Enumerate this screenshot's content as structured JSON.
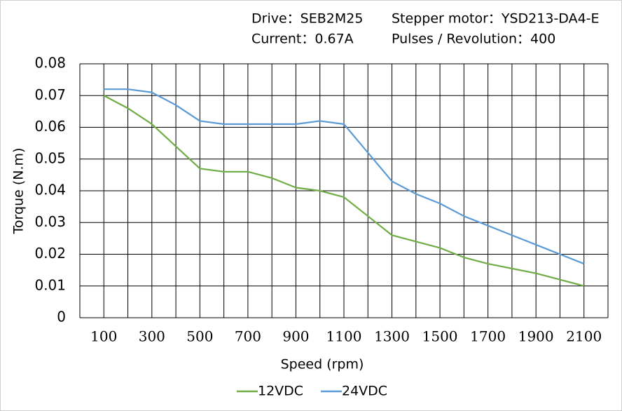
{
  "chart_data": {
    "type": "line",
    "header": [
      "Drive：SEB2M25",
      "Stepper motor：YSD213-DA4-E",
      "Current：0.67A",
      "Pulses / Revolution：400"
    ],
    "x_label": "Speed (rpm)",
    "y_label": "Torque (N.m)",
    "x": [
      100,
      200,
      300,
      400,
      500,
      600,
      700,
      800,
      900,
      1000,
      1100,
      1200,
      1300,
      1400,
      1500,
      1600,
      1700,
      1800,
      1900,
      2000,
      2100
    ],
    "series": [
      {
        "name": "12VDC",
        "color": "#70ad47",
        "values": [
          0.07,
          0.066,
          0.061,
          0.054,
          0.047,
          0.046,
          0.046,
          0.044,
          0.041,
          0.04,
          0.038,
          0.032,
          0.026,
          0.024,
          0.022,
          0.019,
          0.017,
          0.0155,
          0.014,
          0.012,
          0.01
        ]
      },
      {
        "name": "24VDC",
        "color": "#5b9bd5",
        "values": [
          0.072,
          0.072,
          0.071,
          0.067,
          0.062,
          0.061,
          0.061,
          0.061,
          0.061,
          0.062,
          0.061,
          0.052,
          0.043,
          0.039,
          0.036,
          0.032,
          0.029,
          0.026,
          0.023,
          0.02,
          0.017
        ]
      }
    ],
    "xlim": [
      0,
      2200
    ],
    "xticks": [
      100,
      300,
      500,
      700,
      900,
      1100,
      1300,
      1500,
      1700,
      1900,
      2100
    ],
    "minor_xticks": [
      200,
      400,
      600,
      800,
      1000,
      1200,
      1400,
      1600,
      1800,
      2000,
      2200
    ],
    "ylim": [
      0,
      0.08
    ],
    "yticks": [
      0,
      0.01,
      0.02,
      0.03,
      0.04,
      0.05,
      0.06,
      0.07,
      0.08
    ],
    "grid": true,
    "legend": "bottom"
  }
}
